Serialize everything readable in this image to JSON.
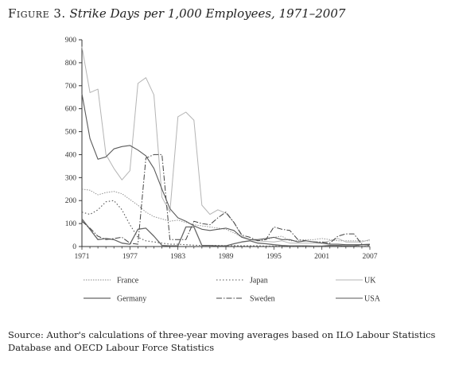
{
  "figure_label": "Figure 3.",
  "source_note": "Source: Author's calculations of three-year moving averages based on ILO Labour Statistics Database and OECD Labour Force Statistics",
  "chart_data": {
    "type": "line",
    "title": "Strike Days per 1,000 Employees, 1971–2007",
    "xlabel": "",
    "ylabel": "",
    "xlim": [
      1971,
      2007
    ],
    "ylim": [
      0,
      900
    ],
    "x_ticks": [
      1971,
      1977,
      1983,
      1989,
      1995,
      2001,
      2007
    ],
    "x_tick_labels": [
      "1971",
      "1977",
      "1983",
      "1989",
      "1995",
      "2001",
      "2007"
    ],
    "y_ticks": [
      0,
      100,
      200,
      300,
      400,
      500,
      600,
      700,
      800,
      900
    ],
    "y_tick_labels": [
      "0",
      "100",
      "200",
      "300",
      "400",
      "500",
      "600",
      "700",
      "800",
      "900"
    ],
    "grid": false,
    "legend_position": "bottom",
    "series": [
      {
        "name": "France",
        "color": "#8a8a8a",
        "dash": "1.5,1.5",
        "width": 0.9,
        "points": [
          [
            1971,
            250
          ],
          [
            1972,
            245
          ],
          [
            1973,
            225
          ],
          [
            1974,
            235
          ],
          [
            1975,
            240
          ],
          [
            1976,
            230
          ],
          [
            1977,
            205
          ],
          [
            1978,
            180
          ],
          [
            1979,
            150
          ],
          [
            1980,
            130
          ],
          [
            1981,
            120
          ],
          [
            1982,
            110
          ],
          [
            1983,
            115
          ],
          [
            1984,
            105
          ],
          [
            1985,
            95
          ],
          [
            1986,
            90
          ],
          [
            1987,
            85
          ],
          [
            1988,
            80
          ],
          [
            1989,
            75
          ],
          [
            1990,
            60
          ],
          [
            1991,
            40
          ],
          [
            1992,
            30
          ],
          [
            1993,
            25
          ],
          [
            1994,
            30
          ],
          [
            1995,
            40
          ],
          [
            1996,
            45
          ],
          [
            1997,
            25
          ],
          [
            1998,
            25
          ],
          [
            1999,
            30
          ],
          [
            2000,
            30
          ],
          [
            2001,
            35
          ],
          [
            2002,
            30
          ],
          [
            2003,
            25
          ],
          [
            2004,
            25
          ],
          [
            2005,
            25
          ],
          [
            2006,
            25
          ],
          [
            2007,
            25
          ]
        ]
      },
      {
        "name": "Japan",
        "color": "#555555",
        "dash": "1.5,2.5",
        "width": 1.1,
        "points": [
          [
            1971,
            150
          ],
          [
            1972,
            140
          ],
          [
            1973,
            160
          ],
          [
            1974,
            195
          ],
          [
            1975,
            200
          ],
          [
            1976,
            160
          ],
          [
            1977,
            95
          ],
          [
            1978,
            40
          ],
          [
            1979,
            25
          ],
          [
            1980,
            20
          ],
          [
            1981,
            15
          ],
          [
            1982,
            10
          ],
          [
            1983,
            10
          ],
          [
            1984,
            8
          ],
          [
            1985,
            6
          ],
          [
            1986,
            5
          ],
          [
            1987,
            5
          ],
          [
            1988,
            5
          ],
          [
            1989,
            4
          ],
          [
            1990,
            4
          ],
          [
            1991,
            3
          ],
          [
            1992,
            3
          ],
          [
            1993,
            3
          ],
          [
            1994,
            2
          ],
          [
            1995,
            2
          ],
          [
            1996,
            2
          ],
          [
            1997,
            1
          ],
          [
            1998,
            1
          ],
          [
            1999,
            1
          ],
          [
            2000,
            1
          ],
          [
            2001,
            1
          ],
          [
            2002,
            1
          ],
          [
            2003,
            1
          ],
          [
            2004,
            1
          ],
          [
            2005,
            1
          ],
          [
            2006,
            1
          ],
          [
            2007,
            1
          ]
        ]
      },
      {
        "name": "UK",
        "color": "#b4b4b4",
        "dash": "",
        "width": 1.0,
        "points": [
          [
            1971,
            870
          ],
          [
            1972,
            670
          ],
          [
            1973,
            685
          ],
          [
            1974,
            400
          ],
          [
            1975,
            340
          ],
          [
            1976,
            290
          ],
          [
            1977,
            330
          ],
          [
            1978,
            710
          ],
          [
            1979,
            735
          ],
          [
            1980,
            660
          ],
          [
            1981,
            215
          ],
          [
            1982,
            150
          ],
          [
            1983,
            565
          ],
          [
            1984,
            585
          ],
          [
            1985,
            550
          ],
          [
            1986,
            180
          ],
          [
            1987,
            140
          ],
          [
            1988,
            160
          ],
          [
            1989,
            145
          ],
          [
            1990,
            105
          ],
          [
            1991,
            45
          ],
          [
            1992,
            30
          ],
          [
            1993,
            25
          ],
          [
            1994,
            22
          ],
          [
            1995,
            20
          ],
          [
            1996,
            25
          ],
          [
            1997,
            15
          ],
          [
            1998,
            15
          ],
          [
            1999,
            15
          ],
          [
            2000,
            15
          ],
          [
            2001,
            15
          ],
          [
            2002,
            25
          ],
          [
            2003,
            35
          ],
          [
            2004,
            20
          ],
          [
            2005,
            20
          ],
          [
            2006,
            20
          ],
          [
            2007,
            30
          ]
        ]
      },
      {
        "name": "Germany",
        "color": "#666666",
        "dash": "",
        "width": 1.3,
        "points": [
          [
            1971,
            120
          ],
          [
            1972,
            75
          ],
          [
            1973,
            30
          ],
          [
            1974,
            35
          ],
          [
            1975,
            30
          ],
          [
            1976,
            15
          ],
          [
            1977,
            10
          ],
          [
            1978,
            75
          ],
          [
            1979,
            80
          ],
          [
            1980,
            45
          ],
          [
            1981,
            5
          ],
          [
            1982,
            3
          ],
          [
            1983,
            3
          ],
          [
            1984,
            85
          ],
          [
            1985,
            85
          ],
          [
            1986,
            5
          ],
          [
            1987,
            5
          ],
          [
            1988,
            3
          ],
          [
            1989,
            3
          ],
          [
            1990,
            12
          ],
          [
            1991,
            20
          ],
          [
            1992,
            25
          ],
          [
            1993,
            15
          ],
          [
            1994,
            12
          ],
          [
            1995,
            8
          ],
          [
            1996,
            5
          ],
          [
            1997,
            3
          ],
          [
            1998,
            3
          ],
          [
            1999,
            3
          ],
          [
            2000,
            2
          ],
          [
            2001,
            2
          ],
          [
            2002,
            5
          ],
          [
            2003,
            5
          ],
          [
            2004,
            3
          ],
          [
            2005,
            3
          ],
          [
            2006,
            8
          ],
          [
            2007,
            10
          ]
        ]
      },
      {
        "name": "Sweden",
        "color": "#444444",
        "dash": "7,2,1.5,2",
        "width": 1.0,
        "points": [
          [
            1971,
            110
          ],
          [
            1972,
            80
          ],
          [
            1973,
            45
          ],
          [
            1974,
            30
          ],
          [
            1975,
            35
          ],
          [
            1976,
            40
          ],
          [
            1977,
            15
          ],
          [
            1978,
            10
          ],
          [
            1979,
            385
          ],
          [
            1980,
            400
          ],
          [
            1981,
            400
          ],
          [
            1982,
            30
          ],
          [
            1983,
            30
          ],
          [
            1984,
            30
          ],
          [
            1985,
            110
          ],
          [
            1986,
            100
          ],
          [
            1987,
            95
          ],
          [
            1988,
            125
          ],
          [
            1989,
            150
          ],
          [
            1990,
            105
          ],
          [
            1991,
            50
          ],
          [
            1992,
            40
          ],
          [
            1993,
            25
          ],
          [
            1994,
            30
          ],
          [
            1995,
            85
          ],
          [
            1996,
            75
          ],
          [
            1997,
            70
          ],
          [
            1998,
            30
          ],
          [
            1999,
            25
          ],
          [
            2000,
            20
          ],
          [
            2001,
            20
          ],
          [
            2002,
            15
          ],
          [
            2003,
            45
          ],
          [
            2004,
            55
          ],
          [
            2005,
            55
          ],
          [
            2006,
            10
          ],
          [
            2007,
            5
          ]
        ]
      },
      {
        "name": "USA",
        "color": "#5a5a5a",
        "dash": "",
        "width": 1.1,
        "points": [
          [
            1971,
            665
          ],
          [
            1972,
            470
          ],
          [
            1973,
            380
          ],
          [
            1974,
            390
          ],
          [
            1975,
            425
          ],
          [
            1976,
            435
          ],
          [
            1977,
            440
          ],
          [
            1978,
            420
          ],
          [
            1979,
            395
          ],
          [
            1980,
            340
          ],
          [
            1981,
            250
          ],
          [
            1982,
            165
          ],
          [
            1983,
            125
          ],
          [
            1984,
            110
          ],
          [
            1985,
            90
          ],
          [
            1986,
            75
          ],
          [
            1987,
            70
          ],
          [
            1988,
            75
          ],
          [
            1989,
            80
          ],
          [
            1990,
            70
          ],
          [
            1991,
            40
          ],
          [
            1992,
            30
          ],
          [
            1993,
            30
          ],
          [
            1994,
            35
          ],
          [
            1995,
            40
          ],
          [
            1996,
            30
          ],
          [
            1997,
            30
          ],
          [
            1998,
            20
          ],
          [
            1999,
            25
          ],
          [
            2000,
            20
          ],
          [
            2001,
            15
          ],
          [
            2002,
            10
          ],
          [
            2003,
            10
          ],
          [
            2004,
            8
          ],
          [
            2005,
            8
          ],
          [
            2006,
            8
          ],
          [
            2007,
            8
          ]
        ]
      }
    ]
  }
}
